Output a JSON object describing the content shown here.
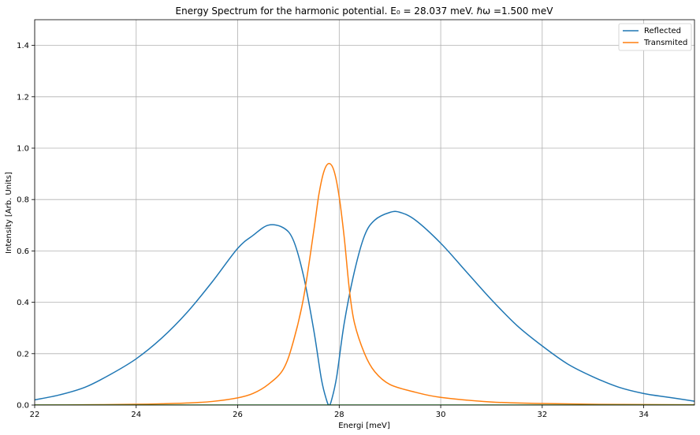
{
  "chart_data": {
    "type": "line",
    "title": "Energy Spectrum for the harmonic potential. E₀ = 28.037 meV. ℏω =1.500 meV",
    "xlabel": "Energi [meV]",
    "ylabel": "Intensity [Arb. Units]",
    "xlim": [
      22,
      35
    ],
    "ylim": [
      0,
      1.5
    ],
    "xticks": [
      22,
      24,
      26,
      28,
      30,
      32,
      34
    ],
    "yticks": [
      0.0,
      0.2,
      0.4,
      0.6,
      0.8,
      1.0,
      1.2,
      1.4
    ],
    "xtick_labels": [
      "22",
      "24",
      "26",
      "28",
      "30",
      "32",
      "34"
    ],
    "ytick_labels": [
      "0.0",
      "0.2",
      "0.4",
      "0.6",
      "0.8",
      "1.0",
      "1.2",
      "1.4"
    ],
    "grid": true,
    "legend": "top-right",
    "series": [
      {
        "name": "Reflected",
        "color": "#1f77b4",
        "x": [
          22.0,
          22.5,
          23.0,
          23.5,
          24.0,
          24.5,
          25.0,
          25.5,
          26.0,
          26.3,
          26.6,
          26.9,
          27.1,
          27.3,
          27.5,
          27.65,
          27.75,
          27.8,
          27.85,
          27.95,
          28.1,
          28.3,
          28.5,
          28.7,
          29.0,
          29.2,
          29.5,
          30.0,
          30.5,
          31.0,
          31.5,
          32.0,
          32.5,
          33.0,
          33.5,
          34.0,
          34.5,
          35.0
        ],
        "y": [
          0.02,
          0.04,
          0.07,
          0.12,
          0.18,
          0.26,
          0.36,
          0.48,
          0.61,
          0.66,
          0.7,
          0.69,
          0.64,
          0.5,
          0.29,
          0.1,
          0.02,
          0.0,
          0.02,
          0.11,
          0.32,
          0.52,
          0.66,
          0.72,
          0.75,
          0.75,
          0.72,
          0.63,
          0.52,
          0.41,
          0.31,
          0.23,
          0.16,
          0.11,
          0.07,
          0.045,
          0.03,
          0.015
        ]
      },
      {
        "name": "Transmited",
        "color": "#ff7f0e",
        "x": [
          22.0,
          23.0,
          24.0,
          24.5,
          25.0,
          25.5,
          26.0,
          26.3,
          26.6,
          26.9,
          27.1,
          27.3,
          27.5,
          27.6,
          27.7,
          27.8,
          27.9,
          28.0,
          28.1,
          28.2,
          28.3,
          28.5,
          28.7,
          29.0,
          29.5,
          30.0,
          31.0,
          32.0,
          33.0,
          34.0,
          35.0
        ],
        "y": [
          0.0,
          0.001,
          0.003,
          0.005,
          0.008,
          0.014,
          0.028,
          0.045,
          0.08,
          0.14,
          0.25,
          0.42,
          0.68,
          0.82,
          0.91,
          0.94,
          0.91,
          0.81,
          0.65,
          0.45,
          0.32,
          0.2,
          0.13,
          0.08,
          0.05,
          0.03,
          0.012,
          0.006,
          0.003,
          0.002,
          0.001
        ]
      },
      {
        "name": "",
        "color": "#2ca02c",
        "x": [
          22,
          35
        ],
        "y": [
          0,
          0
        ]
      }
    ]
  }
}
